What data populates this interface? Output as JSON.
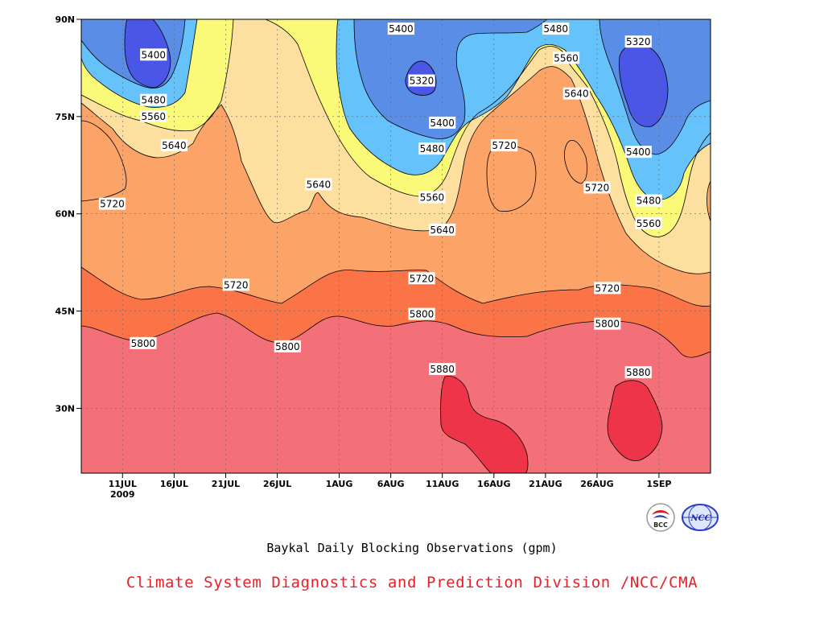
{
  "title": "Baykal Daily Blocking Observations (gpm)",
  "credit": "Climate System Diagnostics and Prediction Division /NCC/CMA",
  "logos": {
    "left": "BCC",
    "right": "NCC"
  },
  "colors": {
    "v5320": "#4a56e6",
    "v5400": "#5a8ee6",
    "v5480": "#66c2fa",
    "v5560": "#fafa78",
    "v5640": "#fde0a0",
    "v5720": "#fca368",
    "v5800": "#fb7448",
    "v5880": "#f47078",
    "v5960": "#ee3448"
  },
  "chart_data": {
    "type": "heatmap",
    "subtype": "filled-contour (time-latitude Hovmoller)",
    "title": "Baykal Daily Blocking Observations (gpm)",
    "x_axis": {
      "ticks": [
        "11JUL",
        "16JUL",
        "21JUL",
        "26JUL",
        "1AUG",
        "6AUG",
        "11AUG",
        "16AUG",
        "21AUG",
        "26AUG",
        "1SEP"
      ],
      "year_label": "2009",
      "range": [
        "2009-07-07",
        "2009-09-06"
      ]
    },
    "y_axis": {
      "ticks": [
        "30N",
        "45N",
        "60N",
        "75N",
        "90N"
      ],
      "range": [
        20,
        90
      ],
      "unit": "degrees latitude"
    },
    "grid": true,
    "contour_levels": [
      5320,
      5400,
      5480,
      5560,
      5640,
      5720,
      5800,
      5880
    ],
    "labels": [
      {
        "text": "5400",
        "x": "2009-07-14",
        "y": 84.5
      },
      {
        "text": "5480",
        "x": "2009-07-14",
        "y": 77.5
      },
      {
        "text": "5560",
        "x": "2009-07-14",
        "y": 75.0
      },
      {
        "text": "5640",
        "x": "2009-07-16",
        "y": 70.5
      },
      {
        "text": "5720",
        "x": "2009-07-10",
        "y": 61.5
      },
      {
        "text": "5640",
        "x": "2009-07-30",
        "y": 64.5
      },
      {
        "text": "5400",
        "x": "2009-08-07",
        "y": 88.5
      },
      {
        "text": "5320",
        "x": "2009-08-09",
        "y": 80.5
      },
      {
        "text": "5400",
        "x": "2009-08-11",
        "y": 74.0
      },
      {
        "text": "5480",
        "x": "2009-08-10",
        "y": 70.0
      },
      {
        "text": "5560",
        "x": "2009-08-10",
        "y": 62.5
      },
      {
        "text": "5640",
        "x": "2009-08-11",
        "y": 57.5
      },
      {
        "text": "5720",
        "x": "2009-08-17",
        "y": 70.5
      },
      {
        "text": "5480",
        "x": "2009-08-22",
        "y": 88.5
      },
      {
        "text": "5560",
        "x": "2009-08-23",
        "y": 84.0
      },
      {
        "text": "5640",
        "x": "2009-08-24",
        "y": 78.5
      },
      {
        "text": "5720",
        "x": "2009-08-26",
        "y": 64.0
      },
      {
        "text": "5320",
        "x": "2009-08-30",
        "y": 86.5
      },
      {
        "text": "5400",
        "x": "2009-08-30",
        "y": 69.5
      },
      {
        "text": "5480",
        "x": "2009-08-31",
        "y": 62.0
      },
      {
        "text": "5560",
        "x": "2009-08-31",
        "y": 58.5
      },
      {
        "text": "5720",
        "x": "2009-07-22",
        "y": 49.0
      },
      {
        "text": "5720",
        "x": "2009-08-09",
        "y": 50.0
      },
      {
        "text": "5720",
        "x": "2009-08-27",
        "y": 48.5
      },
      {
        "text": "5800",
        "x": "2009-07-13",
        "y": 40.0
      },
      {
        "text": "5800",
        "x": "2009-07-27",
        "y": 39.5
      },
      {
        "text": "5800",
        "x": "2009-08-09",
        "y": 44.5
      },
      {
        "text": "5800",
        "x": "2009-08-27",
        "y": 43.0
      },
      {
        "text": "5880",
        "x": "2009-08-11",
        "y": 36.0
      },
      {
        "text": "5880",
        "x": "2009-08-30",
        "y": 35.5
      }
    ]
  }
}
